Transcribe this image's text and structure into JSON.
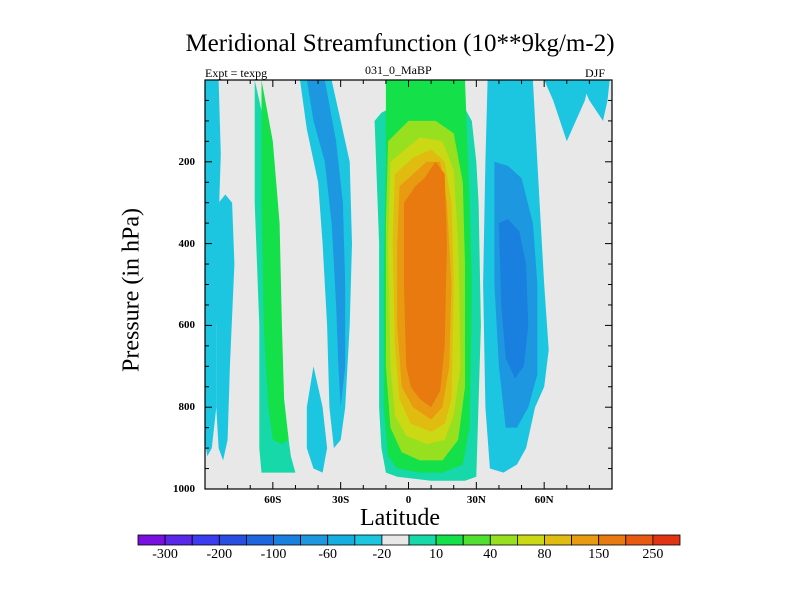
{
  "chart_data": {
    "type": "contour",
    "title": "Meridional Streamfunction (10**9kg/m-2)",
    "left_label": "Expt = texpg",
    "center_label": "031_0_MaBP",
    "right_label": "DJF",
    "xlabel": "Latitude",
    "ylabel": "Pressure (in hPa)",
    "xlim": [
      -90,
      90
    ],
    "ylim": [
      1000,
      0
    ],
    "x_ticks": [
      {
        "value": -60,
        "label": "60S"
      },
      {
        "value": -30,
        "label": "30S"
      },
      {
        "value": 0,
        "label": "0"
      },
      {
        "value": 30,
        "label": "30N"
      },
      {
        "value": 60,
        "label": "60N"
      }
    ],
    "y_ticks": [
      {
        "value": 200,
        "label": "200"
      },
      {
        "value": 400,
        "label": "400"
      },
      {
        "value": 600,
        "label": "600"
      },
      {
        "value": 800,
        "label": "800"
      },
      {
        "value": 1000,
        "label": "1000"
      }
    ],
    "colorbar": {
      "colors": [
        "#7a10e0",
        "#5a28e8",
        "#3c3cf0",
        "#2a4ee0",
        "#1e66e0",
        "#1a80e0",
        "#1d98e0",
        "#15aee0",
        "#1cc6e0",
        "#e8e8e8",
        "#16d8a8",
        "#14e04a",
        "#50e030",
        "#96e020",
        "#cbd814",
        "#e0bc10",
        "#e89a10",
        "#e87a10",
        "#e85a10",
        "#e03414"
      ],
      "labels": [
        {
          "after": 1,
          "text": "-300"
        },
        {
          "after": 3,
          "text": "-200"
        },
        {
          "after": 5,
          "text": "-100"
        },
        {
          "after": 7,
          "text": "-60"
        },
        {
          "after": 9,
          "text": "-20"
        },
        {
          "after": 11,
          "text": "10"
        },
        {
          "after": 13,
          "text": "40"
        },
        {
          "after": 15,
          "text": "80"
        },
        {
          "after": 17,
          "text": "150"
        },
        {
          "after": 19,
          "text": "250"
        }
      ]
    },
    "cells": [
      {
        "name": "far-south-cell",
        "level": -20,
        "color": "#1cc6e0",
        "boundary": [
          [
            -87,
            300
          ],
          [
            -85,
            600
          ],
          [
            -85,
            800
          ],
          [
            -84,
            900
          ],
          [
            -82,
            930
          ],
          [
            -80,
            880
          ],
          [
            -79,
            700
          ],
          [
            -77,
            450
          ],
          [
            -78,
            300
          ],
          [
            -81,
            280
          ],
          [
            -84,
            300
          ]
        ]
      },
      {
        "name": "south-west-cell",
        "level": -20,
        "color": "#1cc6e0",
        "boundary": [
          [
            -92,
            0
          ],
          [
            -93,
            300
          ],
          [
            -92,
            600
          ],
          [
            -91,
            850
          ],
          [
            -89,
            920
          ],
          [
            -87,
            900
          ],
          [
            -85,
            800
          ],
          [
            -85,
            600
          ],
          [
            -84,
            350
          ],
          [
            -83,
            180
          ],
          [
            -84,
            0
          ]
        ]
      },
      {
        "name": "south-cell-30s-outer",
        "level": -20,
        "color": "#1cc6e0",
        "boundary": [
          [
            -48,
            0
          ],
          [
            -45,
            120
          ],
          [
            -40,
            250
          ],
          [
            -38,
            400
          ],
          [
            -36,
            600
          ],
          [
            -35,
            800
          ],
          [
            -33,
            900
          ],
          [
            -30,
            880
          ],
          [
            -28,
            800
          ],
          [
            -26,
            600
          ],
          [
            -25,
            400
          ],
          [
            -26,
            200
          ],
          [
            -30,
            100
          ],
          [
            -34,
            0
          ]
        ]
      },
      {
        "name": "south-cell-30s-inner",
        "level": -60,
        "color": "#1d98e0",
        "boundary": [
          [
            -45,
            0
          ],
          [
            -42,
            100
          ],
          [
            -37,
            200
          ],
          [
            -34,
            350
          ],
          [
            -32,
            550
          ],
          [
            -31,
            700
          ],
          [
            -30,
            800
          ],
          [
            -28,
            700
          ],
          [
            -28,
            500
          ],
          [
            -29,
            300
          ],
          [
            -32,
            150
          ],
          [
            -37,
            0
          ]
        ]
      },
      {
        "name": "southern-ferrel-transition",
        "level": -20,
        "color": "#1cc6e0",
        "boundary": [
          [
            -42,
            700
          ],
          [
            -38,
            800
          ],
          [
            -36,
            900
          ],
          [
            -38,
            960
          ],
          [
            -42,
            950
          ],
          [
            -45,
            900
          ],
          [
            -45,
            800
          ]
        ]
      },
      {
        "name": "southern-hadley-outer",
        "level": 10,
        "color": "#16d8a8",
        "boundary": [
          [
            -68,
            0
          ],
          [
            -62,
            150
          ],
          [
            -58,
            350
          ],
          [
            -57,
            600
          ],
          [
            -55,
            800
          ],
          [
            -52,
            920
          ],
          [
            -50,
            960
          ],
          [
            -55,
            960
          ],
          [
            -60,
            960
          ],
          [
            -65,
            960
          ],
          [
            -66,
            900
          ],
          [
            -66,
            600
          ],
          [
            -68,
            300
          ]
        ]
      },
      {
        "name": "southern-hadley-inner",
        "level": 40,
        "color": "#14e04a",
        "boundary": [
          [
            -65,
            0
          ],
          [
            -60,
            150
          ],
          [
            -57,
            350
          ],
          [
            -56,
            600
          ],
          [
            -55,
            780
          ],
          [
            -53,
            880
          ],
          [
            -56,
            890
          ],
          [
            -60,
            880
          ],
          [
            -62,
            800
          ],
          [
            -64,
            600
          ],
          [
            -65,
            300
          ]
        ]
      },
      {
        "name": "tropical-cell-outer",
        "level": 10,
        "color": "#16d8a8",
        "boundary": [
          [
            -15,
            100
          ],
          [
            -13,
            400
          ],
          [
            -13,
            800
          ],
          [
            -12,
            900
          ],
          [
            -10,
            960
          ],
          [
            -5,
            970
          ],
          [
            10,
            980
          ],
          [
            25,
            980
          ],
          [
            30,
            970
          ],
          [
            32,
            600
          ],
          [
            31,
            300
          ],
          [
            30,
            200
          ],
          [
            28,
            100
          ],
          [
            20,
            20
          ],
          [
            8,
            20
          ],
          [
            -5,
            60
          ],
          [
            -12,
            80
          ]
        ]
      },
      {
        "name": "tropical-cell-40",
        "level": 40,
        "color": "#14e04a",
        "boundary": [
          [
            -10,
            0
          ],
          [
            -10,
            200
          ],
          [
            -11,
            500
          ],
          [
            -11,
            800
          ],
          [
            -9,
            920
          ],
          [
            -5,
            950
          ],
          [
            5,
            960
          ],
          [
            15,
            960
          ],
          [
            24,
            940
          ],
          [
            27,
            850
          ],
          [
            28,
            500
          ],
          [
            27,
            300
          ],
          [
            26,
            150
          ],
          [
            25,
            0
          ]
        ]
      },
      {
        "name": "tropical-cell-80",
        "level": 80,
        "color": "#96e020",
        "boundary": [
          [
            -9,
            150
          ],
          [
            -10,
            350
          ],
          [
            -10,
            700
          ],
          [
            -8,
            850
          ],
          [
            -3,
            910
          ],
          [
            5,
            930
          ],
          [
            15,
            930
          ],
          [
            22,
            880
          ],
          [
            25,
            750
          ],
          [
            25,
            450
          ],
          [
            24,
            250
          ],
          [
            20,
            130
          ],
          [
            12,
            100
          ],
          [
            0,
            100
          ]
        ]
      },
      {
        "name": "tropical-cell-100",
        "level": 100,
        "color": "#cbd814",
        "boundary": [
          [
            -8,
            200
          ],
          [
            -9,
            400
          ],
          [
            -8,
            700
          ],
          [
            -6,
            820
          ],
          [
            -1,
            870
          ],
          [
            8,
            890
          ],
          [
            16,
            880
          ],
          [
            20,
            820
          ],
          [
            23,
            700
          ],
          [
            22,
            400
          ],
          [
            20,
            220
          ],
          [
            15,
            150
          ],
          [
            5,
            140
          ]
        ]
      },
      {
        "name": "tropical-cell-130",
        "level": 130,
        "color": "#e0bc10",
        "boundary": [
          [
            -6,
            230
          ],
          [
            -7,
            400
          ],
          [
            -6,
            650
          ],
          [
            -4,
            780
          ],
          [
            1,
            840
          ],
          [
            10,
            860
          ],
          [
            16,
            840
          ],
          [
            19,
            780
          ],
          [
            20,
            500
          ],
          [
            19,
            300
          ],
          [
            16,
            200
          ],
          [
            10,
            170
          ],
          [
            2,
            190
          ]
        ]
      },
      {
        "name": "tropical-cell-150",
        "level": 150,
        "color": "#e89a10",
        "boundary": [
          [
            -4,
            260
          ],
          [
            -5,
            400
          ],
          [
            -5,
            600
          ],
          [
            -3,
            750
          ],
          [
            2,
            800
          ],
          [
            10,
            830
          ],
          [
            15,
            800
          ],
          [
            18,
            700
          ],
          [
            19,
            500
          ],
          [
            17,
            300
          ],
          [
            14,
            200
          ],
          [
            8,
            200
          ],
          [
            2,
            230
          ]
        ]
      },
      {
        "name": "tropical-cell-core",
        "level": 200,
        "color": "#e87a10",
        "boundary": [
          [
            -2,
            300
          ],
          [
            -2,
            500
          ],
          [
            -1,
            700
          ],
          [
            1,
            750
          ],
          [
            5,
            780
          ],
          [
            10,
            800
          ],
          [
            14,
            760
          ],
          [
            16,
            650
          ],
          [
            17,
            400
          ],
          [
            16,
            230
          ],
          [
            12,
            200
          ],
          [
            7,
            240
          ],
          [
            3,
            260
          ]
        ]
      },
      {
        "name": "northern-ferrel-outer",
        "level": -20,
        "color": "#1cc6e0",
        "boundary": [
          [
            35,
            0
          ],
          [
            34,
            200
          ],
          [
            33,
            500
          ],
          [
            34,
            800
          ],
          [
            36,
            950
          ],
          [
            42,
            960
          ],
          [
            48,
            940
          ],
          [
            52,
            900
          ],
          [
            56,
            800
          ],
          [
            60,
            750
          ],
          [
            62,
            660
          ],
          [
            60,
            500
          ],
          [
            58,
            300
          ],
          [
            56,
            100
          ],
          [
            55,
            0
          ]
        ]
      },
      {
        "name": "northern-ferrel-60",
        "level": -60,
        "color": "#1d98e0",
        "boundary": [
          [
            38,
            200
          ],
          [
            38,
            500
          ],
          [
            40,
            700
          ],
          [
            43,
            850
          ],
          [
            48,
            850
          ],
          [
            53,
            800
          ],
          [
            57,
            720
          ],
          [
            57,
            500
          ],
          [
            55,
            350
          ],
          [
            50,
            240
          ],
          [
            44,
            210
          ]
        ]
      },
      {
        "name": "northern-ferrel-core",
        "level": -100,
        "color": "#1a80e0",
        "boundary": [
          [
            40,
            350
          ],
          [
            41,
            550
          ],
          [
            43,
            680
          ],
          [
            47,
            730
          ],
          [
            51,
            700
          ],
          [
            53,
            600
          ],
          [
            52,
            450
          ],
          [
            49,
            370
          ],
          [
            44,
            340
          ]
        ]
      },
      {
        "name": "polar-cell-north",
        "level": -20,
        "color": "#1cc6e0",
        "boundary": [
          [
            60,
            0
          ],
          [
            64,
            50
          ],
          [
            70,
            150
          ],
          [
            74,
            100
          ],
          [
            78,
            50
          ],
          [
            80,
            0
          ]
        ]
      },
      {
        "name": "polar-cell-north-2",
        "level": -20,
        "color": "#1cc6e0",
        "boundary": [
          [
            76,
            0
          ],
          [
            80,
            50
          ],
          [
            86,
            100
          ],
          [
            88,
            50
          ],
          [
            89,
            0
          ]
        ]
      }
    ]
  }
}
